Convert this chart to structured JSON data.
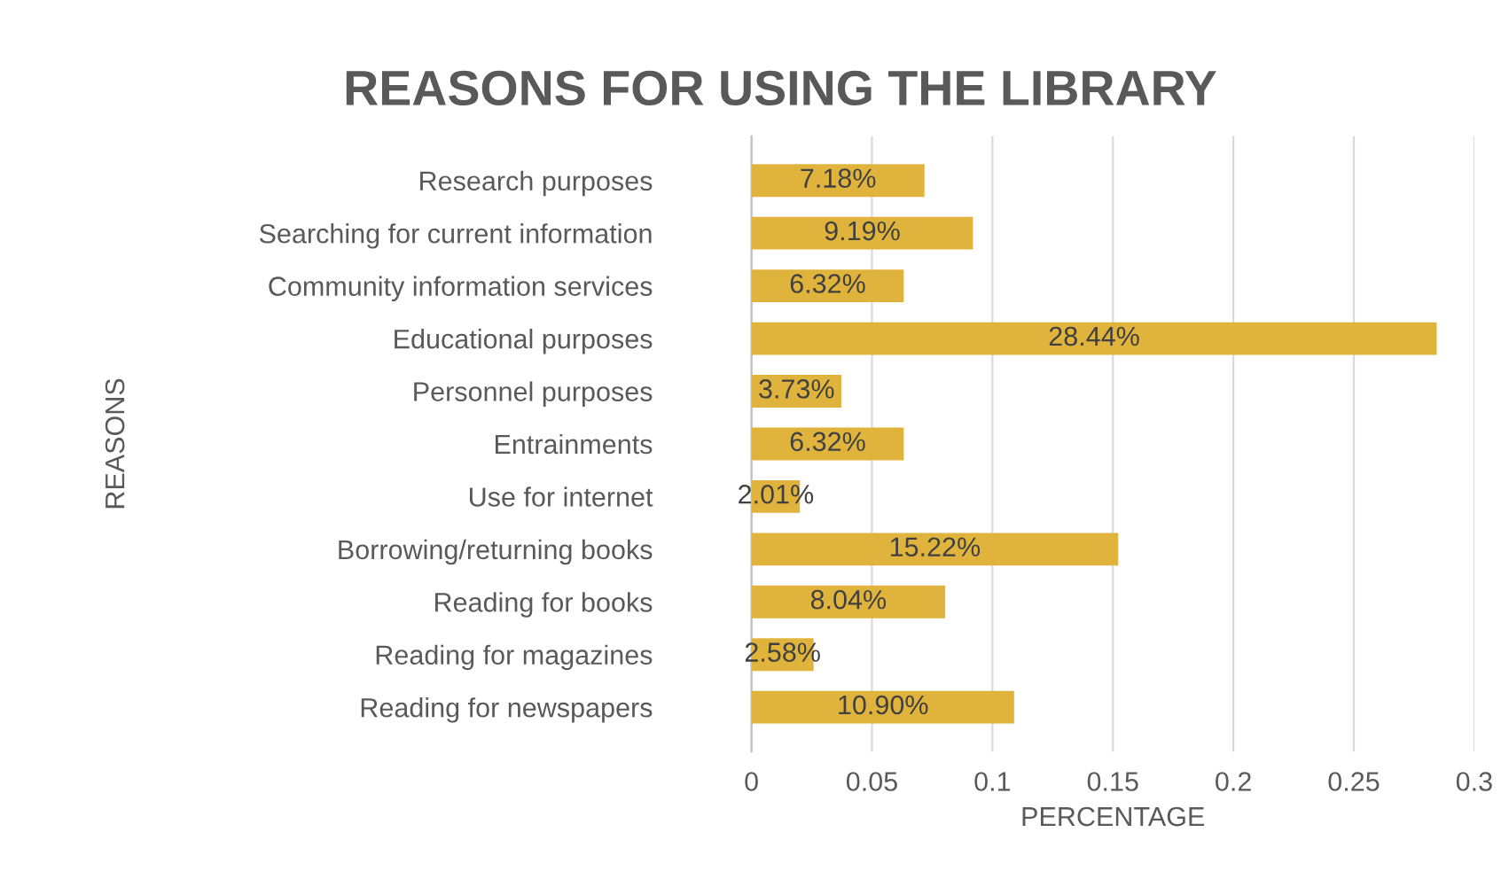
{
  "chart_data": {
    "type": "bar",
    "orientation": "horizontal",
    "title": "REASONS FOR USING THE LIBRARY",
    "xlabel": "PERCENTAGE",
    "ylabel": "REASONS",
    "categories": [
      "Research purposes",
      "Searching for current information",
      "Community information services",
      "Educational purposes",
      "Personnel purposes",
      "Entrainments",
      "Use for internet",
      "Borrowing/returning books",
      "Reading for books",
      "Reading for magazines",
      "Reading for newspapers"
    ],
    "values": [
      0.0718,
      0.0919,
      0.0632,
      0.2844,
      0.0373,
      0.0632,
      0.0201,
      0.1522,
      0.0804,
      0.0258,
      0.109
    ],
    "value_labels": [
      "7.18%",
      "9.19%",
      "6.32%",
      "28.44%",
      "3.73%",
      "6.32%",
      "2.01%",
      "15.22%",
      "8.04%",
      "2.58%",
      "10.90%"
    ],
    "color": "#e0b43c",
    "xlim": [
      0,
      0.3
    ],
    "xticks": [
      0,
      0.05,
      0.1,
      0.15,
      0.2,
      0.25,
      0.3
    ],
    "grid": "x",
    "legend": false
  }
}
